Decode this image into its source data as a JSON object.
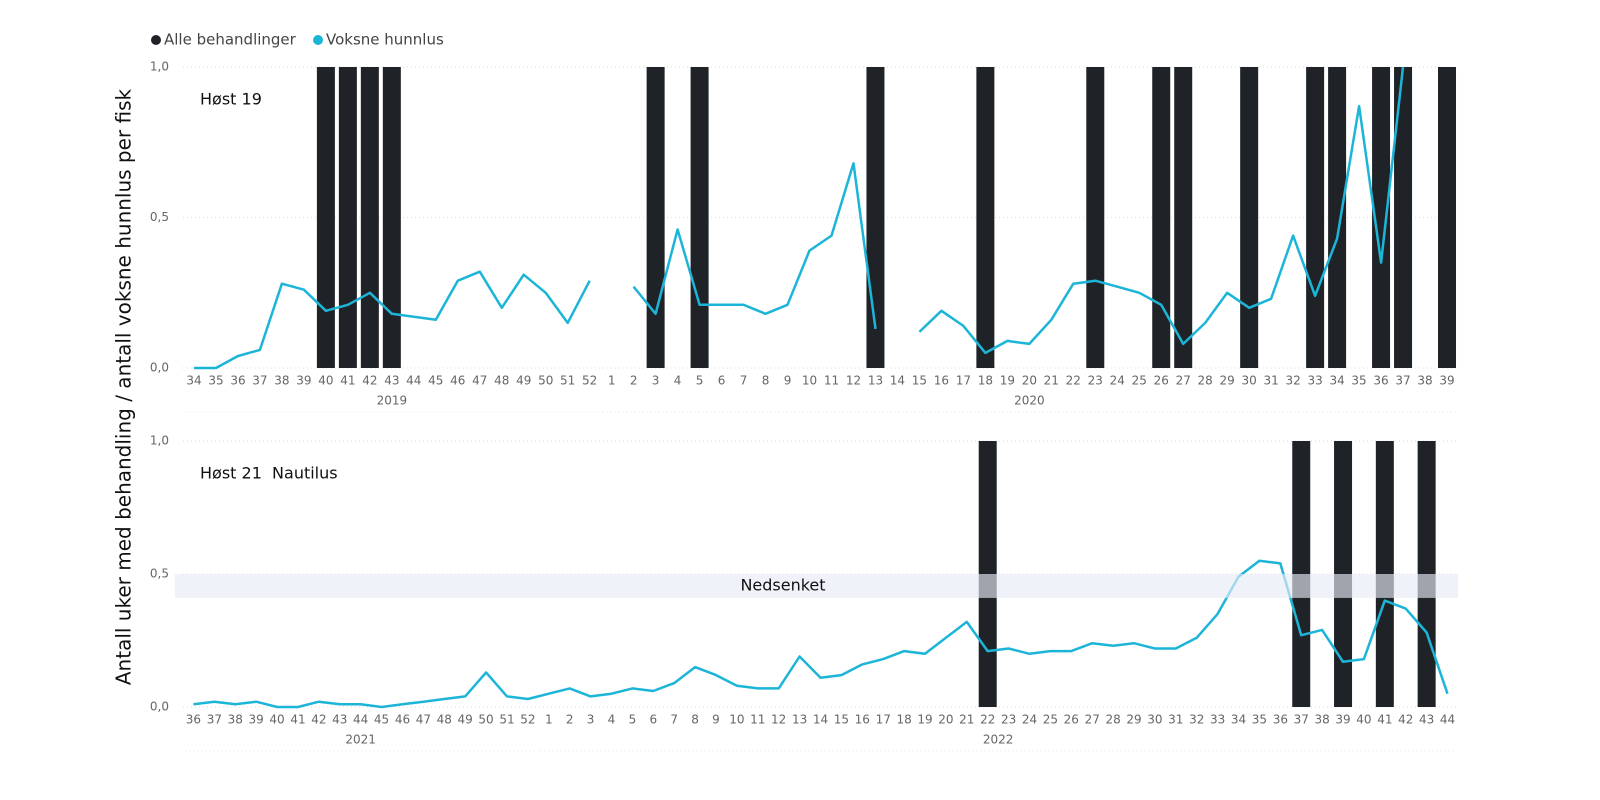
{
  "legend": [
    "Alle behandlinger",
    "Voksne hunnlus"
  ],
  "ylabel": "Antall uker med behandling / antall voksne hunnlus per fisk",
  "chart_data": [
    {
      "type": "combo",
      "title": "Høst 19",
      "years": [
        "2019",
        "2020"
      ],
      "categories": [
        "34",
        "35",
        "36",
        "37",
        "38",
        "39",
        "40",
        "41",
        "42",
        "43",
        "44",
        "45",
        "46",
        "47",
        "48",
        "49",
        "50",
        "51",
        "52",
        "1",
        "2",
        "3",
        "4",
        "5",
        "6",
        "7",
        "8",
        "9",
        "10",
        "11",
        "12",
        "13",
        "14",
        "15",
        "16",
        "17",
        "18",
        "19",
        "20",
        "21",
        "22",
        "23",
        "24",
        "25",
        "26",
        "27",
        "28",
        "29",
        "30",
        "31",
        "32",
        "33",
        "34",
        "35",
        "36",
        "37",
        "38",
        "39"
      ],
      "series": [
        {
          "name": "Alle behandlinger",
          "type": "bar",
          "color": "#1f2328",
          "values": [
            0,
            0,
            0,
            0,
            0,
            0,
            1,
            1,
            1,
            1,
            0,
            0,
            0,
            0,
            0,
            0,
            0,
            0,
            0,
            0,
            0,
            1,
            0,
            1,
            0,
            0,
            0,
            0,
            0,
            0,
            0,
            1,
            0,
            0,
            0,
            0,
            1,
            0,
            0,
            0,
            0,
            1,
            0,
            0,
            1,
            1,
            0,
            0,
            1,
            0,
            0,
            1,
            1,
            0,
            1,
            1,
            0,
            1
          ]
        },
        {
          "name": "Voksne hunnlus",
          "type": "line",
          "color": "#1cb5d8",
          "values": [
            0,
            0,
            0.04,
            0.06,
            0.28,
            0.26,
            0.19,
            0.21,
            0.25,
            0.18,
            0.17,
            0.16,
            0.29,
            0.32,
            0.2,
            0.31,
            0.25,
            0.15,
            0.29,
            null,
            0.27,
            0.18,
            0.46,
            0.21,
            0.21,
            0.21,
            0.18,
            0.21,
            0.39,
            0.44,
            0.68,
            0.13,
            null,
            0.12,
            0.19,
            0.14,
            0.05,
            0.09,
            0.08,
            0.16,
            0.28,
            0.29,
            0.27,
            0.25,
            0.21,
            0.08,
            0.15,
            0.25,
            0.2,
            0.23,
            0.44,
            0.24,
            0.43,
            0.87,
            0.35,
            1.0,
            null,
            null
          ]
        }
      ],
      "ylim": [
        0,
        1
      ],
      "yticks": [
        {
          "value": 0,
          "label": "0,0"
        },
        {
          "value": 0.5,
          "label": "0,5"
        },
        {
          "value": 1,
          "label": "1,0"
        }
      ],
      "grid": true
    },
    {
      "type": "combo",
      "title": "Høst 21  Nautilus",
      "years": [
        "2021",
        "2022"
      ],
      "categories": [
        "36",
        "37",
        "38",
        "39",
        "40",
        "41",
        "42",
        "43",
        "44",
        "45",
        "46",
        "47",
        "48",
        "49",
        "50",
        "51",
        "52",
        "1",
        "2",
        "3",
        "4",
        "5",
        "6",
        "7",
        "8",
        "9",
        "10",
        "11",
        "12",
        "13",
        "14",
        "15",
        "16",
        "17",
        "18",
        "19",
        "20",
        "21",
        "22",
        "23",
        "24",
        "25",
        "26",
        "27",
        "28",
        "29",
        "30",
        "31",
        "32",
        "33",
        "34",
        "35",
        "36",
        "37",
        "38",
        "39",
        "40",
        "41",
        "42",
        "43",
        "44"
      ],
      "series": [
        {
          "type": "bar",
          "color": "#1f2328",
          "values": [
            0,
            0,
            0,
            0,
            0,
            0,
            0,
            0,
            0,
            0,
            0,
            0,
            0,
            0,
            0,
            0,
            0,
            0,
            0,
            0,
            0,
            0,
            0,
            0,
            0,
            0,
            0,
            0,
            0,
            0,
            0,
            0,
            0,
            0,
            0,
            0,
            0,
            0,
            1,
            0,
            0,
            0,
            0,
            0,
            0,
            0,
            0,
            0,
            0,
            0,
            0,
            0,
            0,
            1,
            0,
            1,
            0,
            1,
            0,
            1,
            0
          ]
        },
        {
          "type": "line",
          "color": "#1cb5d8",
          "values": [
            0.01,
            0.02,
            0.01,
            0.02,
            0,
            0,
            0.02,
            0.01,
            0.01,
            0,
            0.01,
            0.02,
            0.03,
            0.04,
            0.13,
            0.04,
            0.03,
            0.05,
            0.07,
            0.04,
            0.05,
            0.07,
            0.06,
            0.09,
            0.15,
            0.12,
            0.08,
            0.07,
            0.07,
            0.19,
            0.11,
            0.12,
            0.16,
            0.18,
            0.21,
            0.2,
            0.26,
            0.32,
            0.21,
            0.22,
            0.2,
            0.21,
            0.21,
            0.24,
            0.23,
            0.24,
            0.22,
            0.22,
            0.26,
            0.35,
            0.49,
            0.55,
            0.54,
            0.27,
            0.29,
            0.17,
            0.18,
            0.4,
            0.37,
            0.28,
            0.05
          ]
        }
      ],
      "band": {
        "label": "Nedsenket",
        "ymin": 0.41,
        "ymax": 0.5
      },
      "ylim": [
        0,
        1
      ],
      "yticks": [
        {
          "value": 0,
          "label": "0,0"
        },
        {
          "value": 0.5,
          "label": "0,5"
        },
        {
          "value": 1,
          "label": "1,0"
        }
      ],
      "grid": true
    }
  ]
}
